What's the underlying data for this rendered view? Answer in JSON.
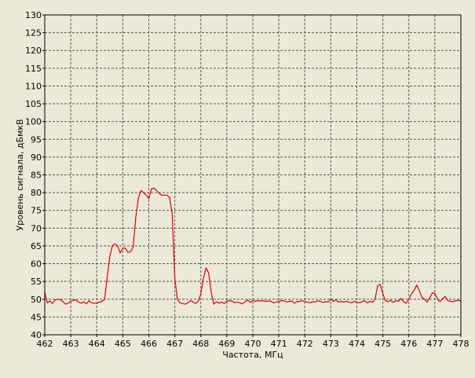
{
  "chart_data": {
    "type": "line",
    "title": "",
    "xlabel": "Частота, МГц",
    "ylabel": "Уровень сигнала, дБмкВ",
    "xlim": [
      462,
      478
    ],
    "ylim": [
      40,
      130
    ],
    "x_ticks": [
      462,
      463,
      464,
      465,
      466,
      467,
      468,
      469,
      470,
      471,
      472,
      473,
      474,
      475,
      476,
      477,
      478
    ],
    "y_ticks": [
      40,
      45,
      50,
      55,
      60,
      65,
      70,
      75,
      80,
      85,
      90,
      95,
      100,
      105,
      110,
      115,
      120,
      125,
      130
    ],
    "grid": true,
    "legend": "none",
    "colors": {
      "background": "#ece9d8",
      "series": "#e00000",
      "grid": "#555555",
      "axis": "#000000"
    },
    "series": [
      {
        "color": "#e00000",
        "points": [
          [
            462.0,
            52.0
          ],
          [
            462.1,
            49.0
          ],
          [
            462.2,
            49.5
          ],
          [
            462.3,
            48.8
          ],
          [
            462.4,
            49.8
          ],
          [
            462.5,
            50.0
          ],
          [
            462.6,
            49.9
          ],
          [
            462.7,
            49.3
          ],
          [
            462.8,
            48.6
          ],
          [
            462.9,
            48.9
          ],
          [
            463.0,
            49.4
          ],
          [
            463.1,
            49.7
          ],
          [
            463.2,
            49.8
          ],
          [
            463.3,
            49.2
          ],
          [
            463.4,
            48.9
          ],
          [
            463.5,
            49.3
          ],
          [
            463.6,
            48.7
          ],
          [
            463.7,
            49.6
          ],
          [
            463.8,
            49.0
          ],
          [
            463.9,
            48.9
          ],
          [
            464.0,
            48.9
          ],
          [
            464.1,
            49.2
          ],
          [
            464.2,
            49.4
          ],
          [
            464.3,
            50.0
          ],
          [
            464.4,
            56.0
          ],
          [
            464.5,
            62.0
          ],
          [
            464.6,
            65.0
          ],
          [
            464.7,
            65.6
          ],
          [
            464.8,
            65.0
          ],
          [
            464.9,
            63.0
          ],
          [
            465.0,
            64.3
          ],
          [
            465.1,
            64.4
          ],
          [
            465.2,
            63.2
          ],
          [
            465.3,
            63.4
          ],
          [
            465.4,
            64.7
          ],
          [
            465.5,
            73.0
          ],
          [
            465.6,
            78.5
          ],
          [
            465.7,
            80.6
          ],
          [
            465.8,
            80.0
          ],
          [
            465.9,
            79.3
          ],
          [
            466.0,
            78.3
          ],
          [
            466.1,
            81.0
          ],
          [
            466.2,
            81.3
          ],
          [
            466.3,
            80.6
          ],
          [
            466.4,
            79.8
          ],
          [
            466.5,
            79.3
          ],
          [
            466.6,
            79.3
          ],
          [
            466.7,
            79.3
          ],
          [
            466.8,
            78.6
          ],
          [
            466.9,
            74.0
          ],
          [
            467.0,
            56.0
          ],
          [
            467.1,
            50.0
          ],
          [
            467.2,
            49.0
          ],
          [
            467.3,
            48.8
          ],
          [
            467.4,
            48.6
          ],
          [
            467.5,
            49.0
          ],
          [
            467.6,
            49.6
          ],
          [
            467.7,
            49.3
          ],
          [
            467.8,
            48.8
          ],
          [
            467.9,
            49.4
          ],
          [
            468.0,
            51.5
          ],
          [
            468.1,
            56.0
          ],
          [
            468.2,
            58.8
          ],
          [
            468.3,
            57.5
          ],
          [
            468.4,
            52.0
          ],
          [
            468.5,
            48.6
          ],
          [
            468.6,
            49.3
          ],
          [
            468.7,
            48.9
          ],
          [
            468.8,
            49.2
          ],
          [
            468.9,
            48.8
          ],
          [
            469.0,
            49.5
          ],
          [
            469.1,
            49.6
          ],
          [
            469.2,
            49.5
          ],
          [
            469.3,
            49.0
          ],
          [
            469.4,
            49.2
          ],
          [
            469.5,
            49.0
          ],
          [
            469.6,
            48.7
          ],
          [
            469.7,
            49.3
          ],
          [
            469.8,
            49.8
          ],
          [
            469.9,
            49.1
          ],
          [
            470.0,
            49.6
          ],
          [
            470.1,
            49.4
          ],
          [
            470.2,
            49.6
          ],
          [
            470.3,
            49.5
          ],
          [
            470.4,
            49.6
          ],
          [
            470.5,
            49.4
          ],
          [
            470.6,
            49.5
          ],
          [
            470.7,
            49.4
          ],
          [
            470.8,
            49.0
          ],
          [
            470.9,
            49.2
          ],
          [
            471.0,
            49.4
          ],
          [
            471.1,
            49.6
          ],
          [
            471.2,
            49.6
          ],
          [
            471.3,
            49.2
          ],
          [
            471.4,
            49.4
          ],
          [
            471.5,
            49.5
          ],
          [
            471.6,
            48.9
          ],
          [
            471.7,
            49.3
          ],
          [
            471.8,
            49.4
          ],
          [
            471.9,
            49.6
          ],
          [
            472.0,
            49.3
          ],
          [
            472.1,
            49.2
          ],
          [
            472.2,
            49.0
          ],
          [
            472.3,
            49.3
          ],
          [
            472.4,
            49.2
          ],
          [
            472.5,
            49.6
          ],
          [
            472.6,
            49.4
          ],
          [
            472.7,
            49.1
          ],
          [
            472.8,
            49.3
          ],
          [
            472.9,
            49.2
          ],
          [
            473.0,
            50.0
          ],
          [
            473.1,
            49.4
          ],
          [
            473.2,
            49.8
          ],
          [
            473.3,
            49.2
          ],
          [
            473.4,
            49.4
          ],
          [
            473.5,
            49.2
          ],
          [
            473.6,
            49.4
          ],
          [
            473.7,
            49.2
          ],
          [
            473.8,
            49.0
          ],
          [
            473.9,
            49.4
          ],
          [
            474.0,
            49.2
          ],
          [
            474.1,
            49.0
          ],
          [
            474.2,
            49.3
          ],
          [
            474.3,
            49.6
          ],
          [
            474.4,
            49.0
          ],
          [
            474.5,
            49.4
          ],
          [
            474.6,
            49.2
          ],
          [
            474.7,
            50.0
          ],
          [
            474.8,
            53.8
          ],
          [
            474.9,
            54.2
          ],
          [
            475.0,
            51.5
          ],
          [
            475.1,
            49.6
          ],
          [
            475.2,
            49.3
          ],
          [
            475.3,
            49.7
          ],
          [
            475.4,
            49.1
          ],
          [
            475.5,
            49.6
          ],
          [
            475.6,
            49.4
          ],
          [
            475.7,
            50.2
          ],
          [
            475.8,
            49.3
          ],
          [
            475.9,
            48.9
          ],
          [
            476.0,
            50.0
          ],
          [
            476.1,
            51.5
          ],
          [
            476.2,
            52.5
          ],
          [
            476.3,
            54.0
          ],
          [
            476.4,
            52.5
          ],
          [
            476.5,
            50.5
          ],
          [
            476.6,
            50.0
          ],
          [
            476.7,
            49.2
          ],
          [
            476.8,
            50.3
          ],
          [
            476.9,
            51.8
          ],
          [
            477.0,
            51.6
          ],
          [
            477.1,
            50.0
          ],
          [
            477.2,
            49.3
          ],
          [
            477.3,
            50.2
          ],
          [
            477.4,
            50.8
          ],
          [
            477.5,
            49.6
          ],
          [
            477.6,
            49.4
          ],
          [
            477.7,
            49.3
          ],
          [
            477.8,
            49.6
          ],
          [
            477.9,
            49.7
          ],
          [
            478.0,
            49.5
          ]
        ]
      }
    ]
  }
}
